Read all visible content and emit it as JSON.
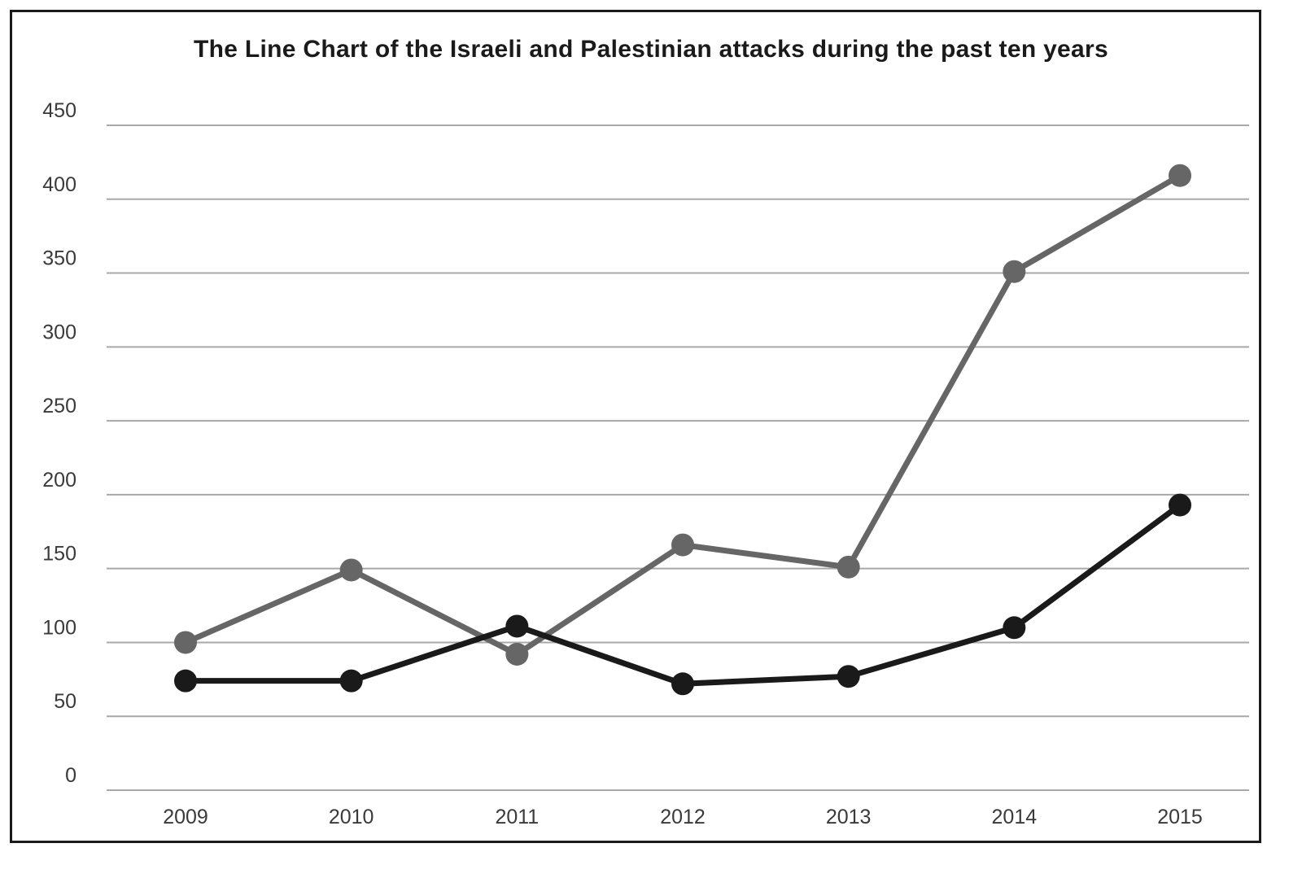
{
  "chart_data": {
    "type": "line",
    "title": "The Line Chart of the Israeli and Palestinian attacks during the past ten years",
    "xlabel": "",
    "ylabel": "",
    "x": [
      "2009",
      "2010",
      "2011",
      "2012",
      "2013",
      "2014",
      "2015"
    ],
    "ylim": [
      0,
      450
    ],
    "yticks": [
      0,
      50,
      100,
      150,
      200,
      250,
      300,
      350,
      400,
      450
    ],
    "grid": true,
    "legend": "none",
    "series": [
      {
        "values": [
          100,
          149,
          92,
          166,
          151,
          351,
          416
        ],
        "color": "#666666"
      },
      {
        "values": [
          74,
          74,
          111,
          72,
          77,
          110,
          193
        ],
        "color": "#1a1a1a"
      }
    ]
  }
}
